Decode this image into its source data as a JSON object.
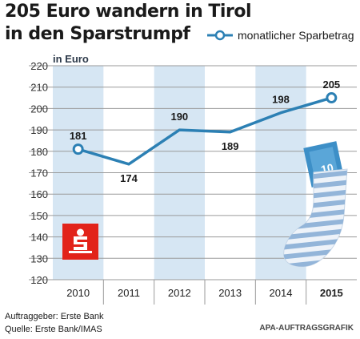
{
  "title_line1": "205 Euro wandern in Tirol",
  "title_line2": "in den Sparstrumpf",
  "unit": "in Euro",
  "footer_client": "Auftraggeber: Erste Bank",
  "footer_source": "Quelle: Erste Bank/IMAS",
  "credit": "APA-AUFTRAGSGRAFIK",
  "sock_tag": "10",
  "colors": {
    "line": "#2c80b4",
    "band": "#d6e6f3",
    "grid": "#9a9a9a",
    "logo": "#e2231a",
    "sock_stripe": "#93b5d9"
  },
  "chart_data": {
    "type": "line",
    "categories": [
      "2010",
      "2011",
      "2012",
      "2013",
      "2014",
      "2015"
    ],
    "series": [
      {
        "name": "monatlicher Sparbetrag",
        "values": [
          181,
          174,
          190,
          189,
          198,
          205
        ]
      }
    ],
    "data_labels": [
      "181",
      "174",
      "190",
      "189",
      "198",
      "205"
    ],
    "ylim": [
      120,
      220
    ],
    "yticks": [
      "120",
      "130",
      "140",
      "150",
      "160",
      "170",
      "180",
      "190",
      "200",
      "210",
      "220"
    ],
    "ylabel": "in Euro",
    "grid": true,
    "legend": "top-right",
    "highlight_category": "2015"
  }
}
